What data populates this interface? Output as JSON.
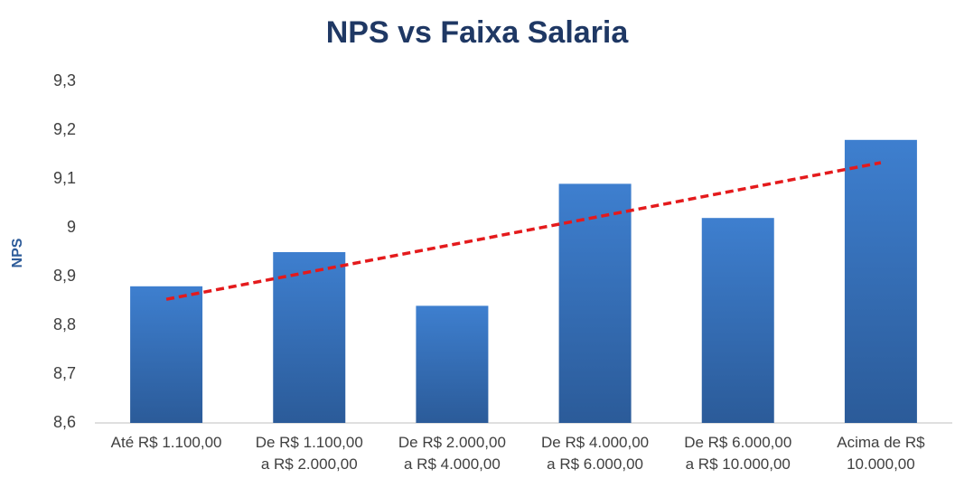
{
  "chart_data": {
    "type": "bar",
    "title": "NPS vs Faixa Salaria",
    "ylabel": "NPS",
    "categories": [
      "Até R$ 1.100,00",
      "De R$ 1.100,00\na R$ 2.000,00",
      "De R$ 2.000,00\na R$ 4.000,00",
      "De R$ 4.000,00\na R$ 6.000,00",
      "De R$ 6.000,00\na R$ 10.000,00",
      "Acima de R$\n10.000,00"
    ],
    "values": [
      8.88,
      8.95,
      8.84,
      9.09,
      9.02,
      9.18
    ],
    "color": "#3a75c0",
    "ylim": [
      8.6,
      9.3
    ],
    "yticks": [
      {
        "value": 8.6,
        "label": "8,6"
      },
      {
        "value": 8.7,
        "label": "8,7"
      },
      {
        "value": 8.8,
        "label": "8,8"
      },
      {
        "value": 8.9,
        "label": "8,9"
      },
      9,
      {
        "value": 9.1,
        "label": "9,1"
      },
      {
        "value": 9.2,
        "label": "9,2"
      },
      {
        "value": 9.3,
        "label": "9,3"
      }
    ],
    "grid": false,
    "trendline": {
      "type": "linear",
      "color": "#e41a1c"
    }
  }
}
